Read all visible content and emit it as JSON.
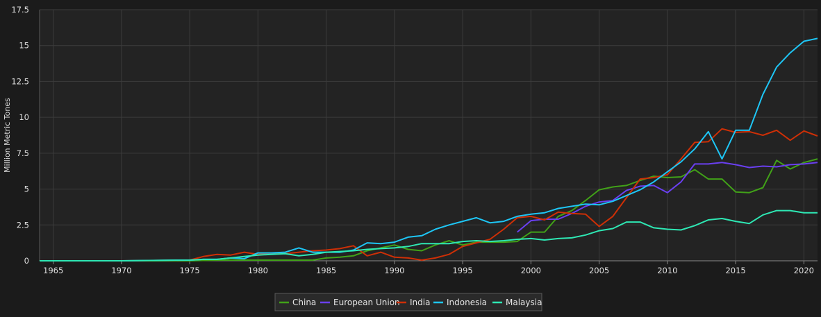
{
  "chart_data": {
    "type": "line",
    "title": "",
    "xlabel": "",
    "ylabel": "Million Metric Tones",
    "xlim": [
      1964,
      2021
    ],
    "ylim": [
      0,
      17.5
    ],
    "x_ticks": [
      1965,
      1970,
      1975,
      1980,
      1985,
      1990,
      1995,
      2000,
      2005,
      2010,
      2015,
      2020
    ],
    "x_tick_labels": [
      "1965",
      "1970",
      "1975",
      "1980",
      "1985",
      "1990",
      "1995",
      "2000",
      "2005",
      "2010",
      "2015",
      "2020"
    ],
    "y_ticks": [
      0,
      2.5,
      5,
      7.5,
      10,
      12.5,
      15,
      17.5
    ],
    "y_tick_labels": [
      "0",
      "2.5",
      "5",
      "7.5",
      "10",
      "12.5",
      "15",
      "17.5"
    ],
    "grid": true,
    "legend_position": "bottom-center",
    "series": [
      {
        "name": "China",
        "color": "#41a118",
        "points": [
          [
            1964,
            0
          ],
          [
            1970,
            0
          ],
          [
            1975,
            0
          ],
          [
            1977,
            0.05
          ],
          [
            1979,
            0.05
          ],
          [
            1981,
            0.05
          ],
          [
            1983,
            0.05
          ],
          [
            1984,
            0.05
          ],
          [
            1985,
            0.2
          ],
          [
            1986,
            0.25
          ],
          [
            1987,
            0.35
          ],
          [
            1988,
            0.7
          ],
          [
            1989,
            0.9
          ],
          [
            1990,
            1.1
          ],
          [
            1991,
            0.8
          ],
          [
            1992,
            0.7
          ],
          [
            1993,
            1.1
          ],
          [
            1994,
            1.4
          ],
          [
            1995,
            1.1
          ],
          [
            1996,
            1.3
          ],
          [
            1997,
            1.3
          ],
          [
            1998,
            1.3
          ],
          [
            1999,
            1.35
          ],
          [
            2000,
            2.0
          ],
          [
            2001,
            2.0
          ],
          [
            2002,
            3.1
          ],
          [
            2003,
            3.5
          ],
          [
            2004,
            4.2
          ],
          [
            2005,
            4.95
          ],
          [
            2006,
            5.15
          ],
          [
            2007,
            5.25
          ],
          [
            2008,
            5.6
          ],
          [
            2009,
            5.9
          ],
          [
            2010,
            5.8
          ],
          [
            2011,
            5.85
          ],
          [
            2012,
            6.35
          ],
          [
            2013,
            5.7
          ],
          [
            2014,
            5.7
          ],
          [
            2015,
            4.8
          ],
          [
            2016,
            4.75
          ],
          [
            2017,
            5.1
          ],
          [
            2018,
            7.0
          ],
          [
            2019,
            6.4
          ],
          [
            2020,
            6.85
          ],
          [
            2021,
            7.1
          ]
        ]
      },
      {
        "name": "European Union",
        "color": "#6a3ff0",
        "points": [
          [
            1999,
            2.0
          ],
          [
            2000,
            2.8
          ],
          [
            2001,
            2.9
          ],
          [
            2002,
            2.9
          ],
          [
            2003,
            3.3
          ],
          [
            2004,
            3.8
          ],
          [
            2005,
            4.1
          ],
          [
            2006,
            4.2
          ],
          [
            2007,
            4.9
          ],
          [
            2008,
            5.2
          ],
          [
            2009,
            5.25
          ],
          [
            2010,
            4.75
          ],
          [
            2011,
            5.5
          ],
          [
            2012,
            6.75
          ],
          [
            2013,
            6.75
          ],
          [
            2014,
            6.85
          ],
          [
            2015,
            6.7
          ],
          [
            2016,
            6.5
          ],
          [
            2017,
            6.6
          ],
          [
            2018,
            6.55
          ],
          [
            2019,
            6.7
          ],
          [
            2020,
            6.75
          ],
          [
            2021,
            6.85
          ]
        ]
      },
      {
        "name": "India",
        "color": "#ce2f06",
        "points": [
          [
            1964,
            0
          ],
          [
            1970,
            0
          ],
          [
            1975,
            0.05
          ],
          [
            1976,
            0.3
          ],
          [
            1977,
            0.45
          ],
          [
            1978,
            0.4
          ],
          [
            1979,
            0.6
          ],
          [
            1980,
            0.45
          ],
          [
            1981,
            0.5
          ],
          [
            1982,
            0.5
          ],
          [
            1983,
            0.6
          ],
          [
            1984,
            0.7
          ],
          [
            1985,
            0.75
          ],
          [
            1986,
            0.85
          ],
          [
            1987,
            1.05
          ],
          [
            1988,
            0.35
          ],
          [
            1989,
            0.6
          ],
          [
            1990,
            0.25
          ],
          [
            1991,
            0.2
          ],
          [
            1992,
            0.05
          ],
          [
            1993,
            0.2
          ],
          [
            1994,
            0.45
          ],
          [
            1995,
            1.0
          ],
          [
            1996,
            1.25
          ],
          [
            1997,
            1.5
          ],
          [
            1998,
            2.2
          ],
          [
            1999,
            3.0
          ],
          [
            2000,
            3.1
          ],
          [
            2001,
            2.85
          ],
          [
            2002,
            3.4
          ],
          [
            2003,
            3.3
          ],
          [
            2004,
            3.25
          ],
          [
            2005,
            2.4
          ],
          [
            2006,
            3.1
          ],
          [
            2007,
            4.4
          ],
          [
            2008,
            5.7
          ],
          [
            2009,
            5.8
          ],
          [
            2010,
            6.0
          ],
          [
            2011,
            7.1
          ],
          [
            2012,
            8.25
          ],
          [
            2013,
            8.3
          ],
          [
            2014,
            9.2
          ],
          [
            2015,
            8.95
          ],
          [
            2016,
            9.0
          ],
          [
            2017,
            8.75
          ],
          [
            2018,
            9.1
          ],
          [
            2019,
            8.4
          ],
          [
            2020,
            9.05
          ],
          [
            2021,
            8.7
          ]
        ]
      },
      {
        "name": "Indonesia",
        "color": "#1ec6f6",
        "points": [
          [
            1964,
            0
          ],
          [
            1970,
            0
          ],
          [
            1974,
            0.05
          ],
          [
            1975,
            0.05
          ],
          [
            1976,
            0.1
          ],
          [
            1977,
            0.1
          ],
          [
            1978,
            0.2
          ],
          [
            1979,
            0.15
          ],
          [
            1980,
            0.55
          ],
          [
            1981,
            0.55
          ],
          [
            1982,
            0.6
          ],
          [
            1983,
            0.9
          ],
          [
            1984,
            0.6
          ],
          [
            1985,
            0.6
          ],
          [
            1986,
            0.6
          ],
          [
            1987,
            0.75
          ],
          [
            1988,
            1.25
          ],
          [
            1989,
            1.2
          ],
          [
            1990,
            1.3
          ],
          [
            1991,
            1.65
          ],
          [
            1992,
            1.75
          ],
          [
            1993,
            2.2
          ],
          [
            1994,
            2.5
          ],
          [
            1995,
            2.75
          ],
          [
            1996,
            3.0
          ],
          [
            1997,
            2.65
          ],
          [
            1998,
            2.75
          ],
          [
            1999,
            3.1
          ],
          [
            2000,
            3.25
          ],
          [
            2001,
            3.35
          ],
          [
            2002,
            3.65
          ],
          [
            2003,
            3.8
          ],
          [
            2004,
            3.95
          ],
          [
            2005,
            3.9
          ],
          [
            2006,
            4.15
          ],
          [
            2007,
            4.55
          ],
          [
            2008,
            4.95
          ],
          [
            2009,
            5.5
          ],
          [
            2010,
            6.2
          ],
          [
            2011,
            6.9
          ],
          [
            2012,
            7.8
          ],
          [
            2013,
            9.0
          ],
          [
            2014,
            7.1
          ],
          [
            2015,
            9.1
          ],
          [
            2016,
            9.1
          ],
          [
            2017,
            11.6
          ],
          [
            2018,
            13.5
          ],
          [
            2019,
            14.5
          ],
          [
            2020,
            15.3
          ],
          [
            2021,
            15.5
          ]
        ]
      },
      {
        "name": "Malaysia",
        "color": "#2ee8b4",
        "points": [
          [
            1964,
            0
          ],
          [
            1970,
            0
          ],
          [
            1975,
            0.05
          ],
          [
            1976,
            0.1
          ],
          [
            1977,
            0.1
          ],
          [
            1978,
            0.2
          ],
          [
            1979,
            0.3
          ],
          [
            1980,
            0.4
          ],
          [
            1981,
            0.45
          ],
          [
            1982,
            0.5
          ],
          [
            1983,
            0.35
          ],
          [
            1984,
            0.45
          ],
          [
            1985,
            0.6
          ],
          [
            1986,
            0.65
          ],
          [
            1987,
            0.7
          ],
          [
            1988,
            0.8
          ],
          [
            1989,
            0.85
          ],
          [
            1990,
            0.9
          ],
          [
            1991,
            1.0
          ],
          [
            1992,
            1.2
          ],
          [
            1993,
            1.2
          ],
          [
            1994,
            1.2
          ],
          [
            1995,
            1.35
          ],
          [
            1996,
            1.4
          ],
          [
            1997,
            1.35
          ],
          [
            1998,
            1.4
          ],
          [
            1999,
            1.5
          ],
          [
            2000,
            1.55
          ],
          [
            2001,
            1.45
          ],
          [
            2002,
            1.55
          ],
          [
            2003,
            1.6
          ],
          [
            2004,
            1.8
          ],
          [
            2005,
            2.1
          ],
          [
            2006,
            2.25
          ],
          [
            2007,
            2.7
          ],
          [
            2008,
            2.7
          ],
          [
            2009,
            2.3
          ],
          [
            2010,
            2.2
          ],
          [
            2011,
            2.15
          ],
          [
            2012,
            2.45
          ],
          [
            2013,
            2.85
          ],
          [
            2014,
            2.95
          ],
          [
            2015,
            2.75
          ],
          [
            2016,
            2.6
          ],
          [
            2017,
            3.2
          ],
          [
            2018,
            3.5
          ],
          [
            2019,
            3.5
          ],
          [
            2020,
            3.35
          ],
          [
            2021,
            3.35
          ]
        ]
      }
    ]
  }
}
